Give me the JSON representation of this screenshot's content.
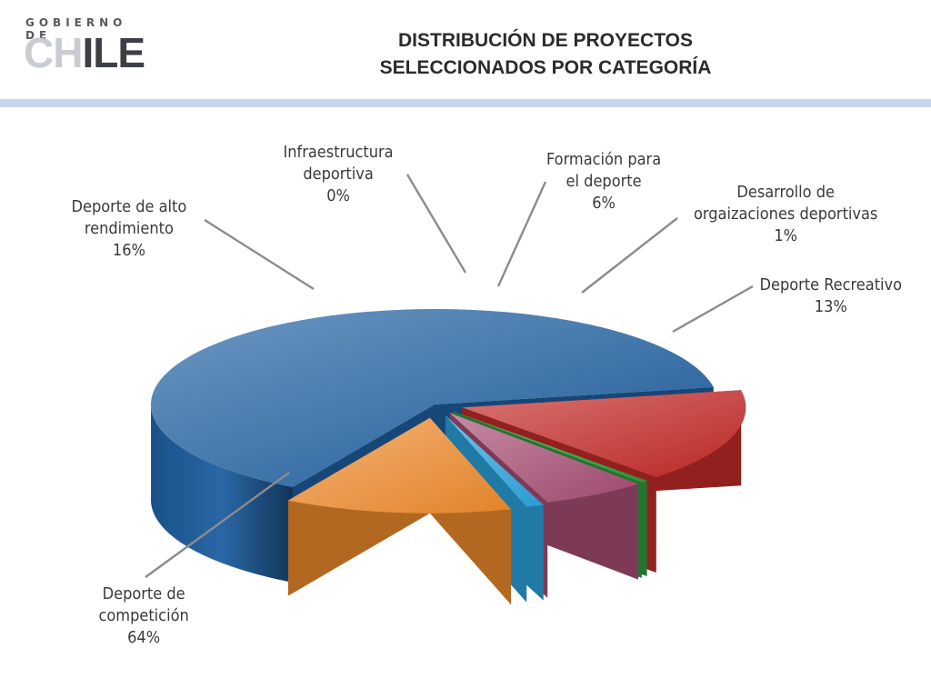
{
  "logo": {
    "line1": "GOBIERNO DE",
    "line2_light": "CH",
    "line2_dark": "ILE"
  },
  "title": {
    "line1": "DISTRIBUCIÓN DE PROYECTOS",
    "line2": "SELECCIONADOS POR CATEGORÍA"
  },
  "chart_data": {
    "type": "pie",
    "style": "3d-exploded",
    "slices": [
      {
        "label_lines": [
          "Deporte de",
          "competición"
        ],
        "percent_label": "64%",
        "value": 64,
        "color": "#1f5fa0"
      },
      {
        "label_lines": [
          "Deporte de alto",
          "rendimiento"
        ],
        "percent_label": "16%",
        "value": 16,
        "color": "#c32a28"
      },
      {
        "label_lines": [
          "Infraestructura",
          "deportiva"
        ],
        "percent_label": "0%",
        "value": 0.4,
        "color": "#2e9a3b"
      },
      {
        "label_lines": [
          "Formación para",
          "el deporte"
        ],
        "percent_label": "6%",
        "value": 6,
        "color": "#a64d73"
      },
      {
        "label_lines": [
          "Desarrollo de",
          "orgaizaciones deportivas"
        ],
        "percent_label": "1%",
        "value": 1,
        "color": "#2ba3dc"
      },
      {
        "label_lines": [
          "Deporte Recreativo"
        ],
        "percent_label": "13%",
        "value": 13,
        "color": "#ee8a2c"
      }
    ]
  }
}
